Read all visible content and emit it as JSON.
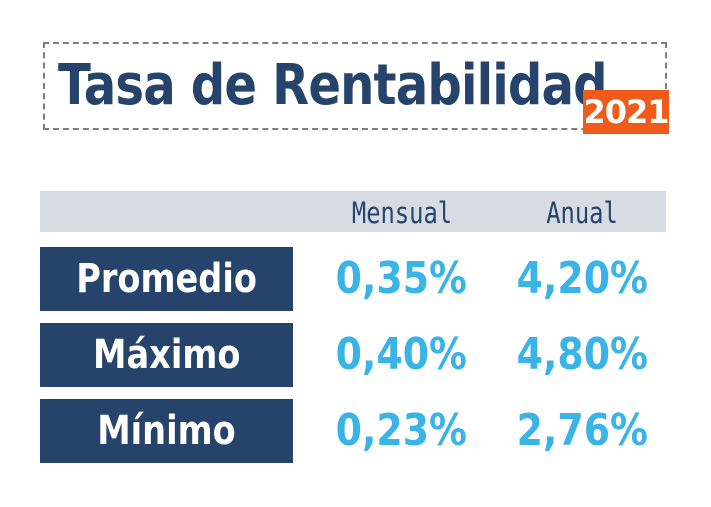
{
  "header": {
    "title": "Tasa de Rentabilidad",
    "year": "2021"
  },
  "table": {
    "columns": [
      "Mensual",
      "Anual"
    ],
    "rows": [
      {
        "label": "Promedio",
        "mensual": "0,35%",
        "anual": "4,20%"
      },
      {
        "label": "Máximo",
        "mensual": "0,40%",
        "anual": "4,80%"
      },
      {
        "label": "Mínimo",
        "mensual": "0,23%",
        "anual": "2,76%"
      }
    ]
  },
  "colors": {
    "navy": "#26446b",
    "accent_blue": "#3ab4e6",
    "badge_orange": "#f05a1a",
    "header_band": "#d7dce4"
  }
}
